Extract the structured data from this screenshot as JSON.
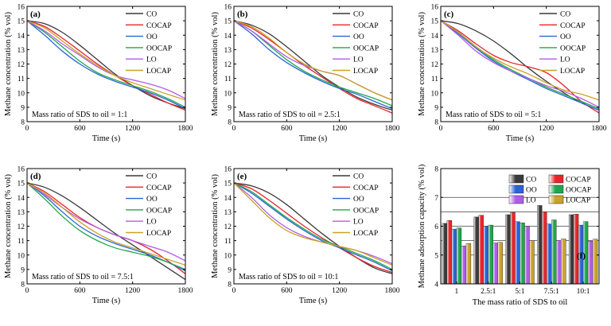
{
  "colors": {
    "CO": "#3a3a3a",
    "COCAP": "#e8252a",
    "OO": "#2b63d8",
    "OOCAP": "#1fa74d",
    "LO": "#b05ce8",
    "LOCAP": "#c9a227"
  },
  "chart_data": [
    {
      "type": "line",
      "panel": "(a)",
      "xlabel": "Time (s)",
      "ylabel": "Methane concentration (% vol)",
      "xlim": [
        0,
        1800
      ],
      "ylim": [
        8,
        16
      ],
      "xticks": [
        0,
        600,
        1200,
        1800
      ],
      "yticks": [
        8,
        9,
        10,
        11,
        12,
        13,
        14,
        15,
        16
      ],
      "annotation": "Mass ratio of SDS to oil = 1:1",
      "legend_position": "top-right",
      "x": [
        0,
        200,
        400,
        600,
        800,
        1000,
        1200,
        1400,
        1600,
        1800
      ],
      "series": [
        {
          "name": "CO",
          "values": [
            15.0,
            14.8,
            14.2,
            13.3,
            12.3,
            11.3,
            10.5,
            9.8,
            9.3,
            8.9
          ]
        },
        {
          "name": "COCAP",
          "values": [
            15.0,
            14.6,
            13.8,
            12.9,
            12.0,
            11.2,
            10.5,
            9.9,
            9.3,
            8.8
          ]
        },
        {
          "name": "OO",
          "values": [
            15.0,
            14.0,
            12.9,
            12.0,
            11.3,
            10.8,
            10.4,
            10.0,
            9.5,
            8.9
          ]
        },
        {
          "name": "OOCAP",
          "values": [
            15.0,
            14.2,
            13.2,
            12.2,
            11.4,
            10.9,
            10.5,
            10.1,
            9.6,
            9.0
          ]
        },
        {
          "name": "LO",
          "values": [
            15.0,
            14.3,
            13.4,
            12.6,
            11.8,
            11.2,
            10.9,
            10.6,
            10.2,
            9.6
          ]
        },
        {
          "name": "LOCAP",
          "values": [
            15.0,
            14.5,
            13.6,
            12.7,
            11.9,
            11.2,
            10.7,
            10.3,
            9.9,
            9.5
          ]
        }
      ]
    },
    {
      "type": "line",
      "panel": "(b)",
      "xlabel": "Time (s)",
      "ylabel": "Methane concentration (% vol)",
      "xlim": [
        0,
        1800
      ],
      "ylim": [
        8,
        16
      ],
      "xticks": [
        0,
        600,
        1200,
        1800
      ],
      "yticks": [
        8,
        9,
        10,
        11,
        12,
        13,
        14,
        15,
        16
      ],
      "annotation": "Mass ratio of SDS to oil = 2.5:1",
      "legend_position": "top-right",
      "x": [
        0,
        200,
        400,
        600,
        800,
        1000,
        1200,
        1400,
        1600,
        1800
      ],
      "series": [
        {
          "name": "CO",
          "values": [
            15.0,
            14.7,
            14.1,
            13.2,
            12.2,
            11.2,
            10.4,
            9.7,
            9.2,
            8.8
          ]
        },
        {
          "name": "COCAP",
          "values": [
            15.0,
            14.5,
            13.7,
            12.8,
            11.9,
            11.1,
            10.3,
            9.6,
            9.1,
            8.6
          ]
        },
        {
          "name": "OO",
          "values": [
            15.0,
            14.1,
            13.0,
            12.1,
            11.4,
            10.8,
            10.3,
            9.9,
            9.4,
            8.9
          ]
        },
        {
          "name": "OOCAP",
          "values": [
            15.0,
            14.3,
            13.3,
            12.3,
            11.5,
            10.9,
            10.4,
            10.0,
            9.6,
            9.1
          ]
        },
        {
          "name": "LO",
          "values": [
            15.0,
            14.3,
            13.4,
            12.5,
            11.9,
            11.5,
            11.2,
            10.6,
            10.0,
            9.5
          ]
        },
        {
          "name": "LOCAP",
          "values": [
            15.0,
            14.6,
            13.8,
            12.8,
            12.0,
            11.5,
            11.2,
            10.6,
            10.0,
            9.5
          ]
        }
      ]
    },
    {
      "type": "line",
      "panel": "(c)",
      "xlabel": "Time (s)",
      "ylabel": "Methane concentration (% vol)",
      "xlim": [
        0,
        1800
      ],
      "ylim": [
        8,
        16
      ],
      "xticks": [
        0,
        600,
        1200,
        1800
      ],
      "yticks": [
        8,
        9,
        10,
        11,
        12,
        13,
        14,
        15,
        16
      ],
      "annotation": "Mass ratio of SDS to oil = 5:1",
      "legend_position": "top-right",
      "x": [
        0,
        200,
        400,
        600,
        800,
        1000,
        1200,
        1400,
        1600,
        1800
      ],
      "series": [
        {
          "name": "CO",
          "values": [
            15.0,
            14.8,
            14.3,
            13.6,
            12.7,
            11.7,
            10.8,
            10.0,
            9.3,
            8.8
          ]
        },
        {
          "name": "COCAP",
          "values": [
            15.0,
            14.3,
            13.4,
            12.6,
            12.1,
            11.8,
            11.4,
            10.5,
            9.4,
            8.6
          ]
        },
        {
          "name": "OO",
          "values": [
            15.0,
            14.1,
            13.1,
            12.2,
            11.5,
            10.9,
            10.3,
            9.8,
            9.3,
            8.8
          ]
        },
        {
          "name": "OOCAP",
          "values": [
            15.0,
            14.2,
            13.2,
            12.3,
            11.6,
            11.0,
            10.4,
            9.9,
            9.4,
            8.9
          ]
        },
        {
          "name": "LO",
          "values": [
            15.0,
            14.0,
            12.9,
            12.1,
            11.5,
            11.0,
            10.5,
            10.1,
            9.6,
            9.0
          ]
        },
        {
          "name": "LOCAP",
          "values": [
            15.0,
            14.2,
            13.2,
            12.4,
            11.8,
            11.3,
            10.7,
            10.2,
            9.9,
            9.5
          ]
        }
      ]
    },
    {
      "type": "line",
      "panel": "(d)",
      "xlabel": "Time (s)",
      "ylabel": "Methane concentration (% vol)",
      "xlim": [
        0,
        1800
      ],
      "ylim": [
        8,
        16
      ],
      "xticks": [
        0,
        600,
        1200,
        1800
      ],
      "yticks": [
        8,
        9,
        10,
        11,
        12,
        13,
        14,
        15,
        16
      ],
      "annotation": "Mass ratio of SDS to oil = 7.5:1",
      "legend_position": "top-right",
      "x": [
        0,
        200,
        400,
        600,
        800,
        1000,
        1200,
        1400,
        1600,
        1800
      ],
      "series": [
        {
          "name": "CO",
          "values": [
            15.0,
            14.7,
            14.1,
            13.3,
            12.4,
            11.5,
            10.7,
            9.9,
            9.1,
            8.3
          ]
        },
        {
          "name": "COCAP",
          "values": [
            15.0,
            14.4,
            13.5,
            12.6,
            11.9,
            11.4,
            11.0,
            10.4,
            9.6,
            8.7
          ]
        },
        {
          "name": "OO",
          "values": [
            15.0,
            14.1,
            13.0,
            12.0,
            11.3,
            10.8,
            10.4,
            10.0,
            9.5,
            8.9
          ]
        },
        {
          "name": "OOCAP",
          "values": [
            15.0,
            13.9,
            12.7,
            11.7,
            11.0,
            10.5,
            10.2,
            9.9,
            9.5,
            9.0
          ]
        },
        {
          "name": "LO",
          "values": [
            15.0,
            14.2,
            13.3,
            12.5,
            11.9,
            11.4,
            11.0,
            10.6,
            10.2,
            9.6
          ]
        },
        {
          "name": "LOCAP",
          "values": [
            15.0,
            14.3,
            13.3,
            12.3,
            11.5,
            10.9,
            10.5,
            10.1,
            9.7,
            9.3
          ]
        }
      ]
    },
    {
      "type": "line",
      "panel": "(e)",
      "xlabel": "Time (s)",
      "ylabel": "Methane concentration (% vol)",
      "xlim": [
        0,
        1800
      ],
      "ylim": [
        8,
        16
      ],
      "xticks": [
        0,
        600,
        1200,
        1800
      ],
      "yticks": [
        8,
        9,
        10,
        11,
        12,
        13,
        14,
        15,
        16
      ],
      "annotation": "Mass ratio of SDS to oil = 10:1",
      "legend_position": "top-right",
      "x": [
        0,
        200,
        400,
        600,
        800,
        1000,
        1200,
        1400,
        1600,
        1800
      ],
      "series": [
        {
          "name": "CO",
          "values": [
            15.0,
            14.8,
            14.3,
            13.5,
            12.5,
            11.5,
            10.6,
            9.8,
            9.1,
            8.7
          ]
        },
        {
          "name": "COCAP",
          "values": [
            15.0,
            14.6,
            13.8,
            12.9,
            12.0,
            11.2,
            10.5,
            9.8,
            9.2,
            8.8
          ]
        },
        {
          "name": "OO",
          "values": [
            15.0,
            14.3,
            13.4,
            12.5,
            11.7,
            11.0,
            10.5,
            10.0,
            9.5,
            8.9
          ]
        },
        {
          "name": "OOCAP",
          "values": [
            15.0,
            14.4,
            13.5,
            12.6,
            11.8,
            11.1,
            10.6,
            10.1,
            9.6,
            9.0
          ]
        },
        {
          "name": "LO",
          "values": [
            15.0,
            14.0,
            12.8,
            11.9,
            11.3,
            10.9,
            10.6,
            10.3,
            9.9,
            9.4
          ]
        },
        {
          "name": "LOCAP",
          "values": [
            15.0,
            13.8,
            12.6,
            11.7,
            11.2,
            10.9,
            10.6,
            10.3,
            9.8,
            9.3
          ]
        }
      ]
    },
    {
      "type": "bar",
      "panel": "(f)",
      "xlabel": "The mass ratio of SDS to oil",
      "ylabel": "Methane adsorption capacity (% vol)",
      "ylim": [
        4,
        8
      ],
      "yticks": [
        4,
        5,
        6,
        7,
        8
      ],
      "grid_lines": [
        5,
        5.5,
        6,
        6.5,
        7
      ],
      "legend_position": "top",
      "categories": [
        "1",
        "2.5:1",
        "5:1",
        "7.5:1",
        "10:1"
      ],
      "series": [
        {
          "name": "CO",
          "values": [
            6.1,
            6.32,
            6.4,
            6.72,
            6.4
          ]
        },
        {
          "name": "COCAP",
          "values": [
            6.2,
            6.38,
            6.48,
            6.5,
            6.42
          ]
        },
        {
          "name": "OO",
          "values": [
            5.9,
            6.0,
            6.16,
            6.08,
            6.04
          ]
        },
        {
          "name": "OOCAP",
          "values": [
            5.94,
            6.04,
            6.12,
            6.22,
            6.16
          ]
        },
        {
          "name": "LO",
          "values": [
            5.32,
            5.42,
            6.0,
            5.5,
            5.48
          ]
        },
        {
          "name": "LOCAP",
          "values": [
            5.4,
            5.44,
            5.5,
            5.56,
            5.55
          ]
        }
      ]
    }
  ]
}
